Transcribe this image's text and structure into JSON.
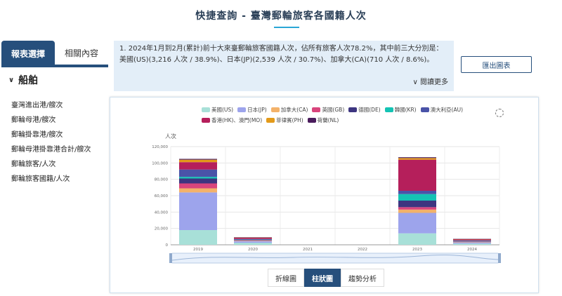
{
  "page": {
    "title": "快捷查詢 - 臺灣郵輪旅客各國籍人次"
  },
  "left": {
    "tabs": [
      {
        "label": "報表選擇"
      },
      {
        "label": "相關內容"
      }
    ],
    "category": "船舶",
    "items": [
      {
        "label": "臺灣進出港/艘次"
      },
      {
        "label": "郵輪母港/艘次"
      },
      {
        "label": "郵輪掛靠港/艘次"
      },
      {
        "label": "郵輪母港掛靠港合計/艘次"
      },
      {
        "label": "郵輪旅客/人次"
      },
      {
        "label": "郵輪旅客國籍/人次"
      }
    ]
  },
  "summary": {
    "text": "1. 2024年1月到2月(累計)前十大來臺郵輪旅客國籍人次，佔所有旅客人次78.2%，其中前三大分別是：美國(US)(3,216 人次 / 38.9%)、日本(JP)(2,539 人次 / 30.7%)、加拿大(CA)(710 人次 / 8.6%)。",
    "read_more": "閱讀更多"
  },
  "export_button": "匯出圖表",
  "view_buttons": [
    {
      "label": "折線圖"
    },
    {
      "label": "柱狀圖"
    },
    {
      "label": "趨勢分析"
    }
  ],
  "icons": {
    "refresh": "refresh-icon",
    "chevron": "chevron-down-icon"
  },
  "colors": {
    "primary": "#264f7c",
    "accent": "#2aa6d6",
    "summary_bg": "#e3eef8"
  },
  "chart_data": {
    "type": "bar",
    "stacked": true,
    "ylabel": "人次",
    "ylim": [
      0,
      120000
    ],
    "yticks": [
      0,
      20000,
      40000,
      60000,
      80000,
      100000,
      120000
    ],
    "categories": [
      "2019",
      "2020",
      "2021",
      "2022",
      "2023",
      "2024"
    ],
    "series": [
      {
        "name": "美國(US)",
        "color": "#a8e0d8",
        "values": [
          18000,
          2500,
          0,
          0,
          14000,
          1500
        ]
      },
      {
        "name": "日本(JP)",
        "color": "#9da4ec",
        "values": [
          46000,
          2000,
          0,
          0,
          25000,
          1500
        ]
      },
      {
        "name": "加拿大(CA)",
        "color": "#f3b26a",
        "values": [
          5000,
          500,
          0,
          0,
          4000,
          500
        ]
      },
      {
        "name": "英國(GB)",
        "color": "#d9457c",
        "values": [
          6000,
          500,
          0,
          0,
          3000,
          500
        ]
      },
      {
        "name": "德國(DE)",
        "color": "#3d3580",
        "values": [
          6000,
          500,
          0,
          0,
          8000,
          500
        ]
      },
      {
        "name": "韓國(KR)",
        "color": "#14c3b4",
        "values": [
          2000,
          300,
          0,
          0,
          8000,
          300
        ]
      },
      {
        "name": "澳大利亞(AU)",
        "color": "#4a53a8",
        "values": [
          9000,
          800,
          0,
          0,
          4000,
          500
        ]
      },
      {
        "name": "香港(HK)、澳門(MO)",
        "color": "#b51f5b",
        "values": [
          9000,
          1500,
          0,
          0,
          38000,
          1500
        ]
      },
      {
        "name": "菲律賓(PH)",
        "color": "#e39a1a",
        "values": [
          3000,
          300,
          0,
          0,
          2000,
          200
        ]
      },
      {
        "name": "荷蘭(NL)",
        "color": "#4a1c5c",
        "values": [
          1000,
          300,
          0,
          0,
          1000,
          200
        ]
      }
    ]
  }
}
